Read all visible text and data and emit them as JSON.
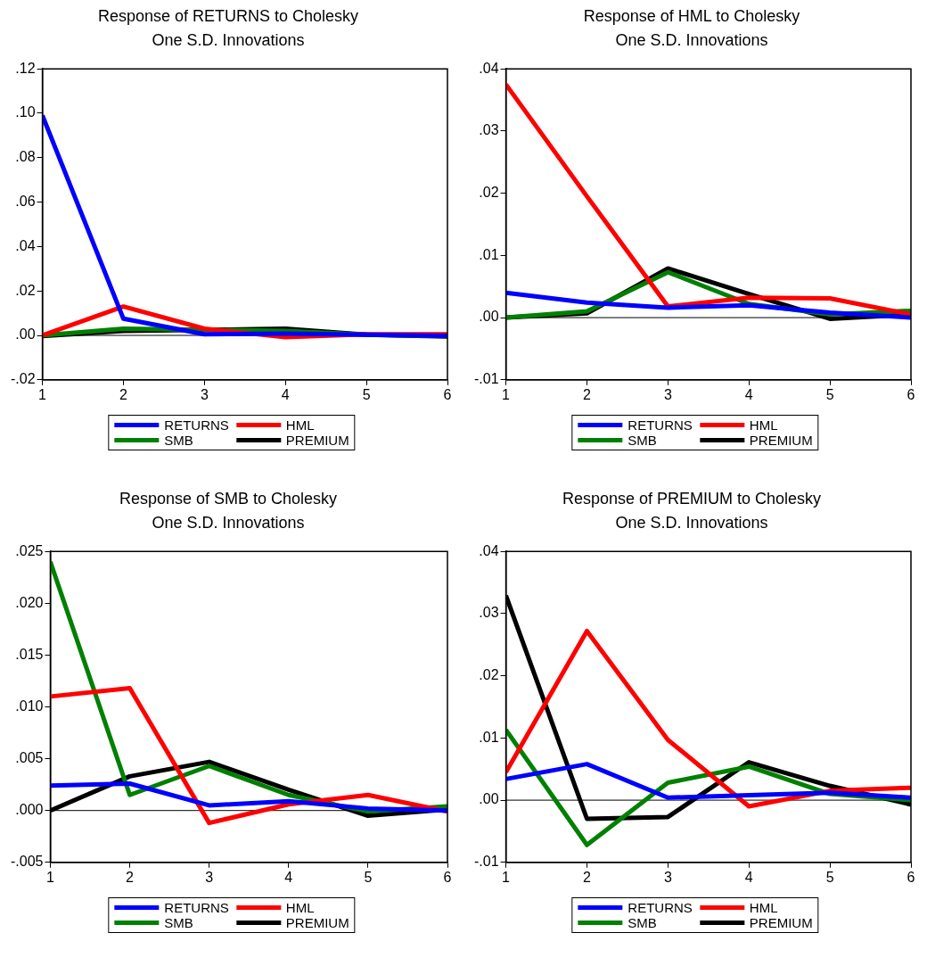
{
  "chart_data": [
    {
      "type": "line",
      "title": "Response of RETURNS to Cholesky",
      "subtitle": "One S.D. Innovations",
      "x": [
        1,
        2,
        3,
        4,
        5,
        6
      ],
      "xlim": [
        1,
        6
      ],
      "xticks": [
        1,
        2,
        3,
        4,
        5,
        6
      ],
      "ylim": [
        -0.02,
        0.12
      ],
      "yticks": [
        {
          "value": -0.02,
          "label": "-.02"
        },
        {
          "value": 0,
          "label": ".00"
        },
        {
          "value": 0.02,
          "label": ".02"
        },
        {
          "value": 0.04,
          "label": ".04"
        },
        {
          "value": 0.06,
          "label": ".06"
        },
        {
          "value": 0.08,
          "label": ".08"
        },
        {
          "value": 0.1,
          "label": ".10"
        },
        {
          "value": 0.12,
          "label": ".12"
        }
      ],
      "grid": false,
      "legend": "bottom",
      "marker": "none",
      "line_style": "solid",
      "ref_lines": [
        {
          "axis": "y",
          "value": 0,
          "color": "#000000"
        }
      ],
      "series": [
        {
          "name": "RETURNS",
          "color": "#0000ff",
          "values": [
            0.099,
            0.0075,
            0.0005,
            0.0008,
            0.0003,
            -0.0002
          ]
        },
        {
          "name": "HML",
          "color": "#ff0000",
          "values": [
            0,
            0.013,
            0.003,
            -0.0008,
            0.0005,
            0.0005
          ]
        },
        {
          "name": "SMB",
          "color": "#008000",
          "values": [
            0,
            0.003,
            0.0025,
            0.002,
            0.0003,
            -0.0003
          ]
        },
        {
          "name": "PREMIUM",
          "color": "#000000",
          "values": [
            -0.0003,
            0.002,
            0.0025,
            0.003,
            0.0003,
            -0.0005
          ]
        }
      ]
    },
    {
      "type": "line",
      "title": "Response of HML to Cholesky",
      "subtitle": "One S.D. Innovations",
      "x": [
        1,
        2,
        3,
        4,
        5,
        6
      ],
      "xlim": [
        1,
        6
      ],
      "xticks": [
        1,
        2,
        3,
        4,
        5,
        6
      ],
      "ylim": [
        -0.01,
        0.04
      ],
      "yticks": [
        {
          "value": -0.01,
          "label": "-.01"
        },
        {
          "value": 0,
          "label": ".00"
        },
        {
          "value": 0.01,
          "label": ".01"
        },
        {
          "value": 0.02,
          "label": ".02"
        },
        {
          "value": 0.03,
          "label": ".03"
        },
        {
          "value": 0.04,
          "label": ".04"
        }
      ],
      "grid": false,
      "legend": "bottom",
      "marker": "none",
      "line_style": "solid",
      "ref_lines": [
        {
          "axis": "y",
          "value": 0,
          "color": "#000000"
        }
      ],
      "series": [
        {
          "name": "RETURNS",
          "color": "#0000ff",
          "values": [
            0.004,
            0.0024,
            0.0016,
            0.002,
            0.0008,
            0
          ]
        },
        {
          "name": "HML",
          "color": "#ff0000",
          "values": [
            0.0375,
            0.0195,
            0.0018,
            0.0032,
            0.0031,
            0.0005
          ]
        },
        {
          "name": "SMB",
          "color": "#008000",
          "values": [
            0,
            0.001,
            0.0073,
            0.0022,
            0.0005,
            0.0011
          ]
        },
        {
          "name": "PREMIUM",
          "color": "#000000",
          "values": [
            0,
            0.0007,
            0.0079,
            0.0038,
            -0.0002,
            0.0005
          ]
        }
      ]
    },
    {
      "type": "line",
      "title": "Response of SMB to Cholesky",
      "subtitle": "One S.D. Innovations",
      "x": [
        1,
        2,
        3,
        4,
        5,
        6
      ],
      "xlim": [
        1,
        6
      ],
      "xticks": [
        1,
        2,
        3,
        4,
        5,
        6
      ],
      "ylim": [
        -0.005,
        0.025
      ],
      "yticks": [
        {
          "value": -0.005,
          "label": "-.005"
        },
        {
          "value": 0,
          "label": ".000"
        },
        {
          "value": 0.005,
          "label": ".005"
        },
        {
          "value": 0.01,
          "label": ".010"
        },
        {
          "value": 0.015,
          "label": ".015"
        },
        {
          "value": 0.02,
          "label": ".020"
        },
        {
          "value": 0.025,
          "label": ".025"
        }
      ],
      "grid": false,
      "legend": "bottom",
      "marker": "none",
      "line_style": "solid",
      "ref_lines": [
        {
          "axis": "y",
          "value": 0,
          "color": "#000000"
        }
      ],
      "series": [
        {
          "name": "RETURNS",
          "color": "#0000ff",
          "values": [
            0.0024,
            0.0026,
            0.0005,
            0.0009,
            0.0002,
            0
          ]
        },
        {
          "name": "HML",
          "color": "#ff0000",
          "values": [
            0.011,
            0.0118,
            -0.0012,
            0.0006,
            0.0015,
            -0.0001
          ]
        },
        {
          "name": "SMB",
          "color": "#008000",
          "values": [
            0.024,
            0.0015,
            0.0043,
            0.0015,
            -0.0001,
            0.0004
          ]
        },
        {
          "name": "PREMIUM",
          "color": "#000000",
          "values": [
            0,
            0.0033,
            0.0047,
            0.002,
            -0.0005,
            0.0001
          ]
        }
      ]
    },
    {
      "type": "line",
      "title": "Response of PREMIUM to Cholesky",
      "subtitle": "One S.D. Innovations",
      "x": [
        1,
        2,
        3,
        4,
        5,
        6
      ],
      "xlim": [
        1,
        6
      ],
      "xticks": [
        1,
        2,
        3,
        4,
        5,
        6
      ],
      "ylim": [
        -0.01,
        0.04
      ],
      "yticks": [
        {
          "value": -0.01,
          "label": "-.01"
        },
        {
          "value": 0,
          "label": ".00"
        },
        {
          "value": 0.01,
          "label": ".01"
        },
        {
          "value": 0.02,
          "label": ".02"
        },
        {
          "value": 0.03,
          "label": ".03"
        },
        {
          "value": 0.04,
          "label": ".04"
        }
      ],
      "grid": false,
      "legend": "bottom",
      "marker": "none",
      "line_style": "solid",
      "ref_lines": [
        {
          "axis": "y",
          "value": 0,
          "color": "#000000"
        }
      ],
      "series": [
        {
          "name": "RETURNS",
          "color": "#0000ff",
          "values": [
            0.0034,
            0.0058,
            0.0004,
            0.0008,
            0.0012,
            0.0004
          ]
        },
        {
          "name": "HML",
          "color": "#ff0000",
          "values": [
            0.0045,
            0.0272,
            0.0097,
            -0.001,
            0.0015,
            0.002
          ]
        },
        {
          "name": "SMB",
          "color": "#008000",
          "values": [
            0.0113,
            -0.0072,
            0.0028,
            0.0054,
            0.001,
            0
          ]
        },
        {
          "name": "PREMIUM",
          "color": "#000000",
          "values": [
            0.0329,
            -0.003,
            -0.0027,
            0.0061,
            0.0023,
            -0.0007
          ]
        }
      ]
    }
  ]
}
